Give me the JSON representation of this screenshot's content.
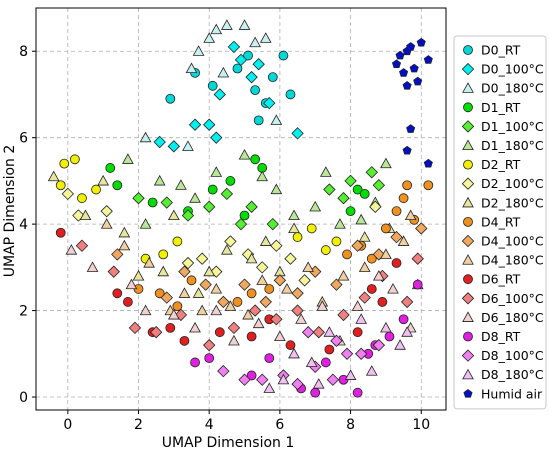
{
  "chart_data": {
    "type": "scatter",
    "title": "",
    "xlabel": "UMAP Dimension 1",
    "ylabel": "UMAP Dimension 2",
    "xlim": [
      -0.9,
      10.7
    ],
    "ylim": [
      -0.3,
      9.0
    ],
    "xticks": [
      "0",
      "2",
      "4",
      "6",
      "8",
      "10"
    ],
    "yticks": [
      "0",
      "2",
      "4",
      "6",
      "8"
    ],
    "grid": true,
    "legend_position": "right",
    "series": [
      {
        "name": "D0_RT",
        "marker": "circle",
        "color": "#00d8d8",
        "points": [
          [
            2.9,
            6.9
          ],
          [
            3.6,
            7.5
          ],
          [
            4.1,
            7.2
          ],
          [
            4.8,
            7.6
          ],
          [
            5.1,
            7.9
          ],
          [
            5.3,
            7.1
          ],
          [
            5.4,
            6.4
          ],
          [
            5.6,
            6.8
          ],
          [
            5.8,
            7.4
          ],
          [
            6.1,
            7.9
          ],
          [
            6.3,
            7.0
          ]
        ]
      },
      {
        "name": "D0_100°C",
        "marker": "diamond",
        "color": "#00f0f0",
        "points": [
          [
            2.6,
            5.9
          ],
          [
            3.0,
            5.8
          ],
          [
            3.6,
            6.3
          ],
          [
            4.2,
            6.0
          ],
          [
            4.3,
            7.0
          ],
          [
            4.7,
            8.1
          ],
          [
            4.9,
            7.8
          ],
          [
            5.2,
            7.4
          ],
          [
            5.4,
            7.7
          ],
          [
            5.7,
            6.8
          ],
          [
            6.5,
            6.1
          ],
          [
            4.0,
            6.3
          ]
        ]
      },
      {
        "name": "D0_180°C",
        "marker": "triangle",
        "color": "#c8f0f0",
        "points": [
          [
            2.2,
            6.0
          ],
          [
            3.4,
            5.8
          ],
          [
            3.5,
            7.6
          ],
          [
            3.7,
            8.0
          ],
          [
            4.0,
            8.3
          ],
          [
            4.2,
            8.5
          ],
          [
            4.5,
            8.6
          ],
          [
            5.0,
            8.6
          ],
          [
            5.3,
            8.2
          ],
          [
            5.6,
            8.3
          ],
          [
            5.9,
            6.4
          ],
          [
            4.4,
            7.5
          ]
        ]
      },
      {
        "name": "D1_RT",
        "marker": "circle",
        "color": "#00dd00",
        "points": [
          [
            1.2,
            5.3
          ],
          [
            1.4,
            4.9
          ],
          [
            2.4,
            4.5
          ],
          [
            3.4,
            4.3
          ],
          [
            4.1,
            4.8
          ],
          [
            4.6,
            5.0
          ],
          [
            5.0,
            4.2
          ],
          [
            5.3,
            5.5
          ],
          [
            5.5,
            5.3
          ],
          [
            8.0,
            4.3
          ],
          [
            8.2,
            4.8
          ],
          [
            8.4,
            4.7
          ]
        ]
      },
      {
        "name": "D1_100°C",
        "marker": "diamond",
        "color": "#55ee33",
        "points": [
          [
            2.0,
            4.6
          ],
          [
            2.8,
            4.5
          ],
          [
            3.4,
            4.2
          ],
          [
            4.0,
            4.4
          ],
          [
            4.5,
            4.7
          ],
          [
            4.9,
            4.0
          ],
          [
            5.2,
            4.4
          ],
          [
            5.8,
            4.0
          ],
          [
            7.4,
            4.8
          ],
          [
            7.8,
            4.6
          ],
          [
            8.0,
            5.0
          ],
          [
            8.6,
            5.2
          ],
          [
            8.8,
            4.9
          ]
        ]
      },
      {
        "name": "D1_180°C",
        "marker": "triangle",
        "color": "#bbe699",
        "points": [
          [
            1.7,
            5.5
          ],
          [
            2.2,
            4.0
          ],
          [
            2.6,
            5.0
          ],
          [
            3.2,
            4.9
          ],
          [
            3.6,
            4.6
          ],
          [
            4.2,
            5.2
          ],
          [
            5.0,
            5.6
          ],
          [
            5.5,
            5.1
          ],
          [
            5.9,
            4.8
          ],
          [
            6.4,
            4.2
          ],
          [
            7.0,
            4.4
          ],
          [
            7.3,
            5.2
          ],
          [
            7.7,
            4.0
          ],
          [
            8.3,
            4.1
          ],
          [
            9.0,
            5.4
          ],
          [
            8.7,
            4.5
          ]
        ]
      },
      {
        "name": "D2_RT",
        "marker": "circle",
        "color": "#f0f000",
        "points": [
          [
            -0.2,
            4.9
          ],
          [
            -0.1,
            5.4
          ],
          [
            0.2,
            5.5
          ],
          [
            0.4,
            4.6
          ],
          [
            0.8,
            4.8
          ],
          [
            2.2,
            3.2
          ],
          [
            2.7,
            3.3
          ],
          [
            3.1,
            3.6
          ],
          [
            6.5,
            3.7
          ],
          [
            6.9,
            3.9
          ],
          [
            7.3,
            3.4
          ],
          [
            7.6,
            3.6
          ]
        ]
      },
      {
        "name": "D2_100°C",
        "marker": "diamond",
        "color": "#f5f59a",
        "points": [
          [
            0.0,
            4.7
          ],
          [
            0.3,
            4.2
          ],
          [
            1.1,
            4.3
          ],
          [
            3.4,
            3.1
          ],
          [
            3.8,
            3.2
          ],
          [
            4.2,
            2.9
          ],
          [
            4.6,
            3.6
          ],
          [
            5.1,
            3.3
          ],
          [
            5.5,
            3.0
          ],
          [
            5.9,
            3.5
          ],
          [
            6.3,
            3.2
          ],
          [
            6.7,
            2.7
          ],
          [
            8.7,
            4.4
          ]
        ]
      },
      {
        "name": "D2_180°C",
        "marker": "triangle",
        "color": "#e6e6a0",
        "points": [
          [
            -0.4,
            5.1
          ],
          [
            0.5,
            4.2
          ],
          [
            1.0,
            5.0
          ],
          [
            1.6,
            3.8
          ],
          [
            2.0,
            2.8
          ],
          [
            2.7,
            2.9
          ],
          [
            3.0,
            4.2
          ],
          [
            3.7,
            2.4
          ],
          [
            4.0,
            2.9
          ],
          [
            4.5,
            3.4
          ],
          [
            5.2,
            3.2
          ],
          [
            5.6,
            3.6
          ],
          [
            6.0,
            2.9
          ],
          [
            6.4,
            3.9
          ],
          [
            8.4,
            3.7
          ],
          [
            9.1,
            3.9
          ]
        ]
      },
      {
        "name": "D4_RT",
        "marker": "circle",
        "color": "#f09020",
        "points": [
          [
            2.0,
            2.5
          ],
          [
            2.6,
            2.4
          ],
          [
            3.1,
            2.1
          ],
          [
            3.5,
            2.7
          ],
          [
            4.8,
            2.2
          ],
          [
            5.2,
            2.4
          ],
          [
            5.7,
            2.5
          ],
          [
            7.9,
            3.3
          ],
          [
            8.3,
            3.5
          ],
          [
            8.6,
            3.2
          ],
          [
            9.0,
            3.9
          ],
          [
            9.3,
            4.3
          ],
          [
            9.5,
            4.6
          ],
          [
            9.8,
            4.1
          ],
          [
            10.2,
            4.9
          ],
          [
            9.6,
            4.9
          ]
        ]
      },
      {
        "name": "D4_100°C",
        "marker": "diamond",
        "color": "#f0a860",
        "points": [
          [
            1.4,
            3.3
          ],
          [
            2.8,
            2.3
          ],
          [
            3.3,
            2.9
          ],
          [
            3.9,
            2.6
          ],
          [
            4.4,
            2.2
          ],
          [
            5.0,
            2.6
          ],
          [
            5.6,
            2.2
          ],
          [
            6.0,
            2.7
          ],
          [
            6.5,
            2.4
          ],
          [
            7.0,
            2.9
          ],
          [
            7.6,
            2.6
          ],
          [
            8.2,
            3.5
          ],
          [
            8.8,
            3.3
          ],
          [
            9.3,
            3.7
          ],
          [
            10.0,
            3.9
          ]
        ]
      },
      {
        "name": "D4_180°C",
        "marker": "triangle",
        "color": "#f0d0a0",
        "points": [
          [
            1.1,
            4.0
          ],
          [
            1.6,
            3.5
          ],
          [
            2.3,
            3.1
          ],
          [
            2.9,
            2.0
          ],
          [
            3.3,
            2.4
          ],
          [
            3.8,
            2.0
          ],
          [
            4.2,
            2.5
          ],
          [
            4.6,
            2.1
          ],
          [
            5.1,
            1.9
          ],
          [
            5.5,
            2.7
          ],
          [
            6.2,
            2.5
          ],
          [
            6.8,
            3.0
          ],
          [
            7.2,
            2.2
          ],
          [
            7.8,
            2.8
          ],
          [
            8.4,
            3.0
          ],
          [
            9.0,
            3.3
          ],
          [
            9.5,
            3.6
          ],
          [
            9.7,
            4.2
          ]
        ]
      },
      {
        "name": "D6_RT",
        "marker": "circle",
        "color": "#e02020",
        "points": [
          [
            -0.2,
            3.8
          ],
          [
            1.4,
            2.4
          ],
          [
            1.7,
            2.2
          ],
          [
            2.4,
            1.5
          ],
          [
            2.9,
            1.6
          ],
          [
            3.3,
            1.3
          ],
          [
            4.3,
            1.5
          ],
          [
            5.2,
            1.4
          ],
          [
            5.7,
            1.8
          ],
          [
            6.3,
            1.2
          ],
          [
            7.4,
            1.1
          ],
          [
            8.2,
            1.5
          ],
          [
            8.6,
            2.5
          ],
          [
            8.9,
            2.2
          ],
          [
            9.3,
            3.1
          ]
        ]
      },
      {
        "name": "D6_100°C",
        "marker": "diamond",
        "color": "#f08080",
        "points": [
          [
            0.4,
            3.5
          ],
          [
            1.3,
            2.9
          ],
          [
            1.9,
            1.6
          ],
          [
            2.5,
            1.5
          ],
          [
            3.2,
            1.9
          ],
          [
            4.0,
            1.2
          ],
          [
            4.7,
            1.6
          ],
          [
            5.3,
            2.0
          ],
          [
            5.9,
            1.8
          ],
          [
            6.5,
            2.0
          ],
          [
            7.1,
            1.5
          ],
          [
            7.8,
            1.9
          ],
          [
            8.4,
            2.3
          ],
          [
            8.9,
            2.8
          ],
          [
            9.6,
            2.2
          ],
          [
            9.9,
            3.2
          ]
        ]
      },
      {
        "name": "D6_180°C",
        "marker": "triangle",
        "color": "#f0d0d0",
        "points": [
          [
            0.1,
            3.4
          ],
          [
            0.7,
            3.0
          ],
          [
            1.8,
            2.6
          ],
          [
            2.2,
            2.0
          ],
          [
            3.0,
            1.9
          ],
          [
            3.6,
            1.6
          ],
          [
            4.2,
            2.0
          ],
          [
            4.7,
            1.3
          ],
          [
            5.4,
            1.7
          ],
          [
            6.0,
            1.4
          ],
          [
            6.6,
            1.8
          ],
          [
            7.2,
            2.1
          ],
          [
            7.7,
            1.3
          ],
          [
            8.2,
            2.1
          ],
          [
            8.8,
            2.8
          ],
          [
            9.2,
            2.5
          ],
          [
            9.7,
            1.6
          ],
          [
            9.9,
            2.6
          ]
        ]
      },
      {
        "name": "D8_RT",
        "marker": "circle",
        "color": "#e020e0",
        "points": [
          [
            3.6,
            0.8
          ],
          [
            4.0,
            0.9
          ],
          [
            5.2,
            0.5
          ],
          [
            5.7,
            0.9
          ],
          [
            6.6,
            0.2
          ],
          [
            7.0,
            0.1
          ],
          [
            7.3,
            0.8
          ],
          [
            7.8,
            0.4
          ],
          [
            8.2,
            0.1
          ],
          [
            8.5,
            1.0
          ],
          [
            8.7,
            1.2
          ],
          [
            9.1,
            1.4
          ],
          [
            9.5,
            1.8
          ],
          [
            9.9,
            2.6
          ]
        ]
      },
      {
        "name": "D8_100°C",
        "marker": "diamond",
        "color": "#f080f0",
        "points": [
          [
            4.4,
            0.6
          ],
          [
            5.0,
            0.4
          ],
          [
            5.5,
            0.4
          ],
          [
            6.1,
            0.5
          ],
          [
            6.5,
            0.3
          ],
          [
            7.0,
            0.7
          ],
          [
            7.5,
            0.4
          ],
          [
            7.9,
            1.0
          ],
          [
            8.3,
            1.0
          ],
          [
            8.8,
            1.2
          ],
          [
            6.8,
            1.5
          ],
          [
            7.6,
            1.3
          ]
        ]
      },
      {
        "name": "D8_180°C",
        "marker": "triangle",
        "color": "#f0c0f0",
        "points": [
          [
            5.7,
            0.2
          ],
          [
            6.1,
            0.4
          ],
          [
            6.4,
            1.0
          ],
          [
            6.9,
            0.8
          ],
          [
            7.4,
            1.5
          ],
          [
            8.0,
            0.5
          ],
          [
            8.6,
            0.6
          ],
          [
            9.0,
            1.6
          ],
          [
            9.4,
            1.2
          ],
          [
            9.6,
            1.5
          ],
          [
            7.1,
            0.3
          ],
          [
            8.3,
            1.8
          ]
        ]
      },
      {
        "name": "Humid air",
        "marker": "pentagon",
        "color": "#0010c8",
        "points": [
          [
            9.3,
            7.7
          ],
          [
            9.4,
            7.9
          ],
          [
            9.5,
            7.5
          ],
          [
            9.6,
            8.0
          ],
          [
            9.7,
            8.1
          ],
          [
            9.8,
            7.6
          ],
          [
            9.9,
            7.3
          ],
          [
            10.0,
            8.2
          ],
          [
            10.2,
            7.8
          ],
          [
            9.6,
            7.2
          ],
          [
            9.7,
            6.2
          ],
          [
            10.2,
            5.4
          ],
          [
            9.6,
            5.7
          ]
        ]
      }
    ]
  }
}
